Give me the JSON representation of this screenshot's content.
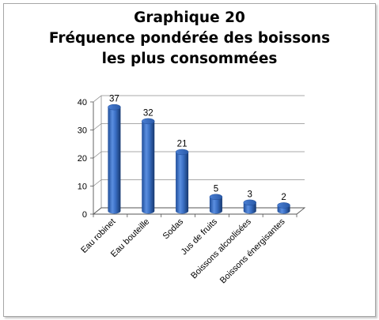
{
  "chart_data": {
    "type": "bar",
    "title_lines": [
      "Graphique 20",
      "Fréquence pondérée des boissons",
      "les plus consommées"
    ],
    "categories": [
      "Eau robinet",
      "Eau bouteille",
      "Sodas",
      "Jus de fruits",
      "Boissons alcoolisées",
      "Boissons énergisantes"
    ],
    "values": [
      37,
      32,
      21,
      5,
      3,
      2
    ],
    "ylim": [
      0,
      40
    ],
    "yticks": [
      "0",
      "10",
      "20",
      "30",
      "40"
    ],
    "data_labels": [
      "37",
      "32",
      "21",
      "5",
      "3",
      "2"
    ],
    "grid": true,
    "bar_color": "#3a6fc4",
    "style": "3d-cylinder"
  }
}
